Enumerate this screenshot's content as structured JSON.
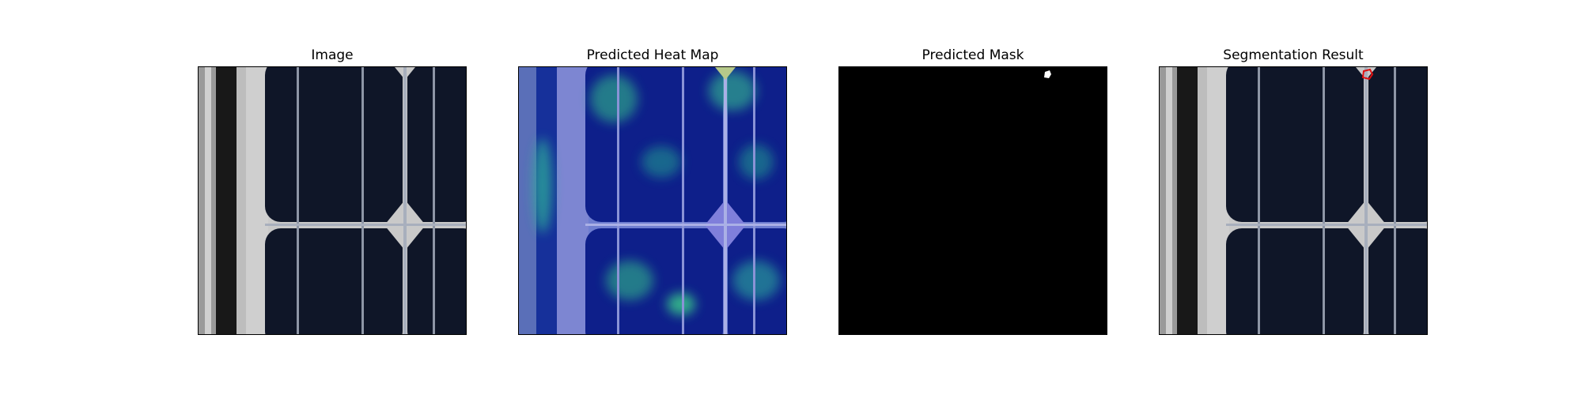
{
  "figure": {
    "panels": [
      {
        "title": "Image"
      },
      {
        "title": "Predicted Heat Map"
      },
      {
        "title": "Predicted Mask"
      },
      {
        "title": "Segmentation Result"
      }
    ]
  },
  "colors": {
    "cell": "#101729",
    "frame_white": "#c8c8c8",
    "frame_dark": "#1c1c1c",
    "finger": "#9ea6b5",
    "heat_overlay": "#1a3fb2",
    "heat_hot": "#3ddc8a",
    "mask_bg": "#000000",
    "mask_fg": "#ffffff",
    "defect_outline": "#e01010"
  }
}
